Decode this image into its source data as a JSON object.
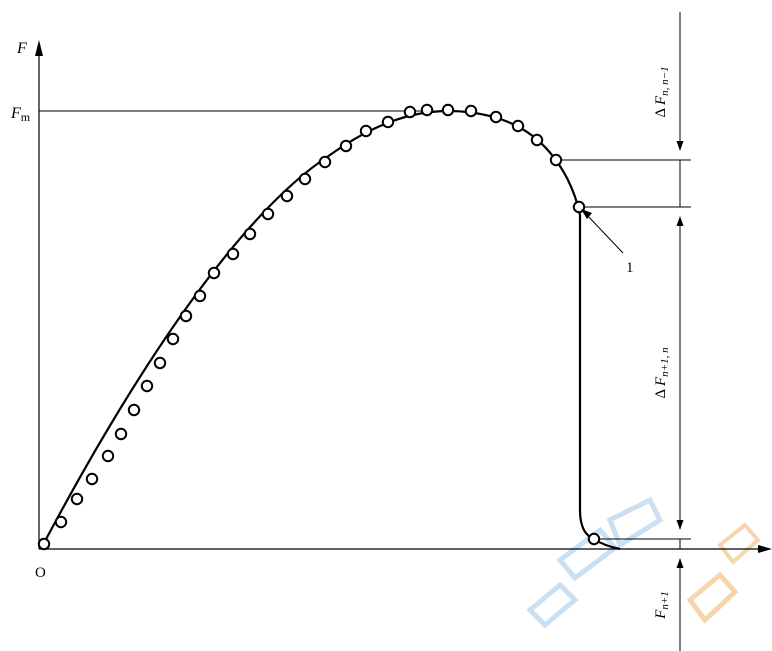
{
  "axis": {
    "y_label": "F",
    "x_origin_label": "O"
  },
  "levels": {
    "fm_label": "F",
    "fm_sub": "m"
  },
  "callout": {
    "number": "1"
  },
  "dimensions": {
    "upper": {
      "delta": "Δ",
      "base": "F",
      "sub": "n, n−1"
    },
    "middle": {
      "delta": "Δ",
      "base": "F",
      "sub": "n+1, n"
    },
    "lower": {
      "base": "F",
      "sub": "n+1"
    }
  },
  "colors": {
    "ink": "#000000",
    "watermark_blue": "#9ec8ec",
    "watermark_orange": "#f2b46a"
  },
  "curve": {
    "marker_count": 31,
    "description_values": "force–time curve rising to maximum Fm then dropping sharply to F(n+1)"
  }
}
